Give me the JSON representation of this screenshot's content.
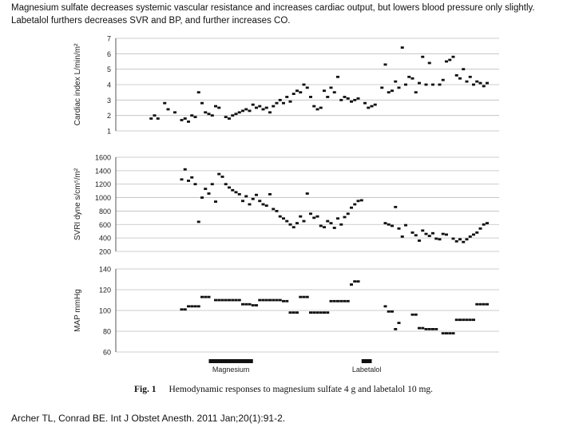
{
  "caption": {
    "line1": "Magnesium sulfate decreases systemic vascular resistance and increases cardiac output, but lowers blood pressure only slightly.",
    "line2": "Labetalol furthers decreases SVR and BP, and further increases CO."
  },
  "figure": {
    "label": "Fig. 1",
    "text": "Hemodynamic responses to magnesium sulfate 4 g and labetalol 10 mg."
  },
  "citation": "Archer TL, Conrad BE. Int J Obstet Anesth. 2011 Jan;20(1):91-2.",
  "colors": {
    "marker": "#111111",
    "axis": "#555555",
    "grid": "#bdbdbd",
    "bar": "#111111"
  },
  "chart_data": [
    {
      "type": "scatter",
      "ylabel": "Cardiac index L/min/m²",
      "ylim": [
        1,
        7
      ],
      "yticks": [
        "1",
        "2",
        "3",
        "4",
        "5",
        "6",
        "7"
      ],
      "grid": true,
      "x_unit": "time index 0-100",
      "series": [
        {
          "points": [
            [
              1,
              1.8
            ],
            [
              2,
              2.0
            ],
            [
              3,
              1.8
            ],
            [
              5,
              2.8
            ],
            [
              6,
              2.4
            ],
            [
              8,
              2.2
            ],
            [
              10,
              1.7
            ],
            [
              11,
              1.8
            ],
            [
              12,
              1.6
            ],
            [
              13,
              2.0
            ],
            [
              14,
              1.9
            ],
            [
              15,
              3.5
            ],
            [
              16,
              2.8
            ],
            [
              17,
              2.2
            ],
            [
              18,
              2.1
            ],
            [
              19,
              2.0
            ],
            [
              20,
              2.6
            ],
            [
              21,
              2.5
            ],
            [
              23,
              1.9
            ],
            [
              24,
              1.8
            ],
            [
              25,
              2.0
            ],
            [
              26,
              2.1
            ],
            [
              27,
              2.2
            ],
            [
              28,
              2.3
            ],
            [
              29,
              2.4
            ],
            [
              30,
              2.3
            ],
            [
              31,
              2.7
            ],
            [
              32,
              2.5
            ],
            [
              33,
              2.6
            ],
            [
              34,
              2.4
            ],
            [
              35,
              2.5
            ],
            [
              36,
              2.2
            ],
            [
              37,
              2.6
            ],
            [
              38,
              2.8
            ],
            [
              39,
              3.0
            ],
            [
              40,
              2.8
            ],
            [
              41,
              3.2
            ],
            [
              42,
              2.9
            ],
            [
              43,
              3.4
            ],
            [
              44,
              3.6
            ],
            [
              45,
              3.5
            ],
            [
              46,
              4.0
            ],
            [
              47,
              3.8
            ],
            [
              48,
              3.2
            ],
            [
              49,
              2.6
            ],
            [
              50,
              2.4
            ],
            [
              51,
              2.5
            ],
            [
              52,
              3.6
            ],
            [
              53,
              3.2
            ],
            [
              54,
              3.8
            ],
            [
              55,
              3.5
            ],
            [
              56,
              4.5
            ],
            [
              57,
              3.0
            ],
            [
              58,
              3.2
            ],
            [
              59,
              3.1
            ],
            [
              60,
              2.9
            ],
            [
              61,
              3.0
            ],
            [
              62,
              3.1
            ],
            [
              64,
              2.8
            ],
            [
              65,
              2.5
            ],
            [
              66,
              2.6
            ],
            [
              67,
              2.7
            ],
            [
              69,
              3.8
            ],
            [
              70,
              5.3
            ],
            [
              71,
              3.5
            ],
            [
              72,
              3.6
            ],
            [
              73,
              4.2
            ],
            [
              74,
              3.8
            ],
            [
              75,
              6.4
            ],
            [
              76,
              4.0
            ],
            [
              77,
              4.5
            ],
            [
              78,
              4.4
            ],
            [
              79,
              3.5
            ],
            [
              80,
              4.1
            ],
            [
              81,
              5.8
            ],
            [
              82,
              4.0
            ],
            [
              83,
              5.4
            ],
            [
              84,
              4.0
            ],
            [
              86,
              4.0
            ],
            [
              87,
              4.3
            ],
            [
              88,
              5.5
            ],
            [
              89,
              5.6
            ],
            [
              90,
              5.8
            ],
            [
              91,
              4.6
            ],
            [
              92,
              4.4
            ],
            [
              93,
              5.0
            ],
            [
              94,
              4.2
            ],
            [
              95,
              4.5
            ],
            [
              96,
              4.0
            ],
            [
              97,
              4.2
            ],
            [
              98,
              4.1
            ],
            [
              99,
              3.9
            ],
            [
              100,
              4.1
            ]
          ]
        }
      ]
    },
    {
      "type": "scatter",
      "ylabel": "SVRI dyne s/cm⁵/m²",
      "ylim": [
        200,
        1600
      ],
      "yticks": [
        "200",
        "400",
        "600",
        "800",
        "1000",
        "1200",
        "1400",
        "1600"
      ],
      "grid": true,
      "x_unit": "time index 0-100",
      "series": [
        {
          "points": [
            [
              10,
              1270
            ],
            [
              11,
              1420
            ],
            [
              12,
              1250
            ],
            [
              13,
              1300
            ],
            [
              14,
              1200
            ],
            [
              15,
              640
            ],
            [
              16,
              1000
            ],
            [
              17,
              1130
            ],
            [
              18,
              1060
            ],
            [
              19,
              1200
            ],
            [
              20,
              940
            ],
            [
              21,
              1350
            ],
            [
              22,
              1310
            ],
            [
              23,
              1200
            ],
            [
              24,
              1150
            ],
            [
              25,
              1110
            ],
            [
              26,
              1080
            ],
            [
              27,
              1050
            ],
            [
              28,
              950
            ],
            [
              29,
              1020
            ],
            [
              30,
              900
            ],
            [
              31,
              980
            ],
            [
              32,
              1040
            ],
            [
              33,
              950
            ],
            [
              34,
              900
            ],
            [
              35,
              880
            ],
            [
              36,
              1050
            ],
            [
              37,
              830
            ],
            [
              38,
              800
            ],
            [
              39,
              720
            ],
            [
              40,
              690
            ],
            [
              41,
              650
            ],
            [
              42,
              600
            ],
            [
              43,
              560
            ],
            [
              44,
              620
            ],
            [
              45,
              720
            ],
            [
              46,
              650
            ],
            [
              47,
              1060
            ],
            [
              48,
              760
            ],
            [
              49,
              700
            ],
            [
              50,
              720
            ],
            [
              51,
              580
            ],
            [
              52,
              560
            ],
            [
              53,
              650
            ],
            [
              54,
              620
            ],
            [
              55,
              550
            ],
            [
              56,
              690
            ],
            [
              57,
              600
            ],
            [
              58,
              710
            ],
            [
              59,
              760
            ],
            [
              60,
              850
            ],
            [
              61,
              900
            ],
            [
              62,
              950
            ],
            [
              63,
              960
            ],
            [
              70,
              620
            ],
            [
              71,
              600
            ],
            [
              72,
              580
            ],
            [
              73,
              860
            ],
            [
              74,
              540
            ],
            [
              75,
              420
            ],
            [
              76,
              590
            ],
            [
              78,
              480
            ],
            [
              79,
              440
            ],
            [
              80,
              360
            ],
            [
              81,
              510
            ],
            [
              82,
              460
            ],
            [
              83,
              430
            ],
            [
              84,
              470
            ],
            [
              85,
              390
            ],
            [
              86,
              380
            ],
            [
              87,
              460
            ],
            [
              88,
              450
            ],
            [
              90,
              390
            ],
            [
              91,
              350
            ],
            [
              92,
              380
            ],
            [
              93,
              340
            ],
            [
              94,
              380
            ],
            [
              95,
              420
            ],
            [
              96,
              450
            ],
            [
              97,
              480
            ],
            [
              98,
              540
            ],
            [
              99,
              600
            ],
            [
              100,
              620
            ]
          ]
        }
      ]
    },
    {
      "type": "scatter",
      "ylabel": "MAP mmHg",
      "ylim": [
        60,
        140
      ],
      "yticks": [
        "60",
        "80",
        "100",
        "120",
        "140"
      ],
      "grid": true,
      "x_unit": "time index 0-100",
      "series": [
        {
          "points": [
            [
              10,
              101
            ],
            [
              11,
              101
            ],
            [
              12,
              104
            ],
            [
              13,
              104
            ],
            [
              14,
              104
            ],
            [
              15,
              104
            ],
            [
              16,
              113
            ],
            [
              17,
              113
            ],
            [
              18,
              113
            ],
            [
              20,
              110
            ],
            [
              21,
              110
            ],
            [
              22,
              110
            ],
            [
              23,
              110
            ],
            [
              24,
              110
            ],
            [
              25,
              110
            ],
            [
              26,
              110
            ],
            [
              27,
              110
            ],
            [
              28,
              106
            ],
            [
              29,
              106
            ],
            [
              30,
              106
            ],
            [
              31,
              105
            ],
            [
              32,
              105
            ],
            [
              33,
              110
            ],
            [
              34,
              110
            ],
            [
              35,
              110
            ],
            [
              36,
              110
            ],
            [
              37,
              110
            ],
            [
              38,
              110
            ],
            [
              39,
              110
            ],
            [
              40,
              109
            ],
            [
              41,
              109
            ],
            [
              42,
              98
            ],
            [
              43,
              98
            ],
            [
              44,
              98
            ],
            [
              45,
              113
            ],
            [
              46,
              113
            ],
            [
              47,
              113
            ],
            [
              48,
              98
            ],
            [
              49,
              98
            ],
            [
              50,
              98
            ],
            [
              51,
              98
            ],
            [
              52,
              98
            ],
            [
              53,
              98
            ],
            [
              54,
              109
            ],
            [
              55,
              109
            ],
            [
              56,
              109
            ],
            [
              57,
              109
            ],
            [
              58,
              109
            ],
            [
              59,
              109
            ],
            [
              60,
              125
            ],
            [
              61,
              128
            ],
            [
              62,
              128
            ],
            [
              70,
              104
            ],
            [
              71,
              99
            ],
            [
              72,
              99
            ],
            [
              73,
              82
            ],
            [
              74,
              88
            ],
            [
              78,
              96
            ],
            [
              79,
              96
            ],
            [
              80,
              83
            ],
            [
              81,
              83
            ],
            [
              82,
              82
            ],
            [
              83,
              82
            ],
            [
              84,
              82
            ],
            [
              85,
              82
            ],
            [
              87,
              78
            ],
            [
              88,
              78
            ],
            [
              89,
              78
            ],
            [
              90,
              78
            ],
            [
              91,
              91
            ],
            [
              92,
              91
            ],
            [
              93,
              91
            ],
            [
              94,
              91
            ],
            [
              95,
              91
            ],
            [
              96,
              91
            ],
            [
              97,
              106
            ],
            [
              98,
              106
            ],
            [
              99,
              106
            ],
            [
              100,
              106
            ]
          ]
        }
      ]
    }
  ],
  "bars": [
    {
      "label": "Magnesium",
      "start": 18,
      "end": 31
    },
    {
      "label": "Labetalol",
      "start": 63,
      "end": 66
    }
  ]
}
